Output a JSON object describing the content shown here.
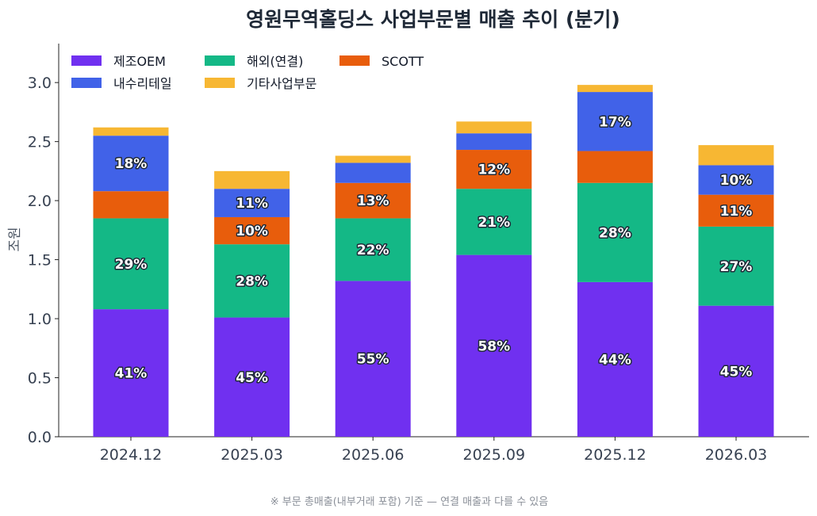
{
  "chart_data": {
    "type": "bar",
    "stacked": true,
    "title": "영원무역홀딩스 사업부문별 매출 추이 (분기)",
    "ylabel": "조원",
    "ylim": [
      0,
      3.33
    ],
    "yticks": [
      0.0,
      0.5,
      1.0,
      1.5,
      2.0,
      2.5,
      3.0
    ],
    "ytick_labels": [
      "0.0",
      "0.5",
      "1.0",
      "1.5",
      "2.0",
      "2.5",
      "3.0"
    ],
    "categories": [
      "2024.12",
      "2025.03",
      "2025.06",
      "2025.09",
      "2025.12",
      "2026.03"
    ],
    "series": [
      {
        "name": "제조OEM",
        "color": "#7030f0",
        "values": [
          1.08,
          1.01,
          1.32,
          1.54,
          1.31,
          1.11
        ],
        "labels": [
          "41%",
          "45%",
          "55%",
          "58%",
          "44%",
          "45%"
        ]
      },
      {
        "name": "해외(연결)",
        "color": "#14b886",
        "values": [
          0.77,
          0.62,
          0.53,
          0.56,
          0.84,
          0.67
        ],
        "labels": [
          "29%",
          "28%",
          "22%",
          "21%",
          "28%",
          "27%"
        ]
      },
      {
        "name": "SCOTT",
        "color": "#e85d0c",
        "values": [
          0.23,
          0.23,
          0.3,
          0.33,
          0.27,
          0.27
        ],
        "labels": [
          "",
          "10%",
          "13%",
          "12%",
          "",
          "11%"
        ]
      },
      {
        "name": "내수리테일",
        "color": "#4162e8",
        "values": [
          0.47,
          0.24,
          0.17,
          0.14,
          0.5,
          0.25
        ],
        "labels": [
          "18%",
          "11%",
          "",
          "",
          "17%",
          "10%"
        ]
      },
      {
        "name": "기타사업부문",
        "color": "#f7b733",
        "values": [
          0.07,
          0.15,
          0.06,
          0.1,
          0.06,
          0.17
        ],
        "labels": [
          "",
          "",
          "",
          "",
          "",
          ""
        ]
      }
    ],
    "legend_position": "top-left",
    "grid": false
  },
  "footnote": "※ 부문 총매출(내부거래 포함) 기준 — 연결 매출과 다를 수 있음"
}
